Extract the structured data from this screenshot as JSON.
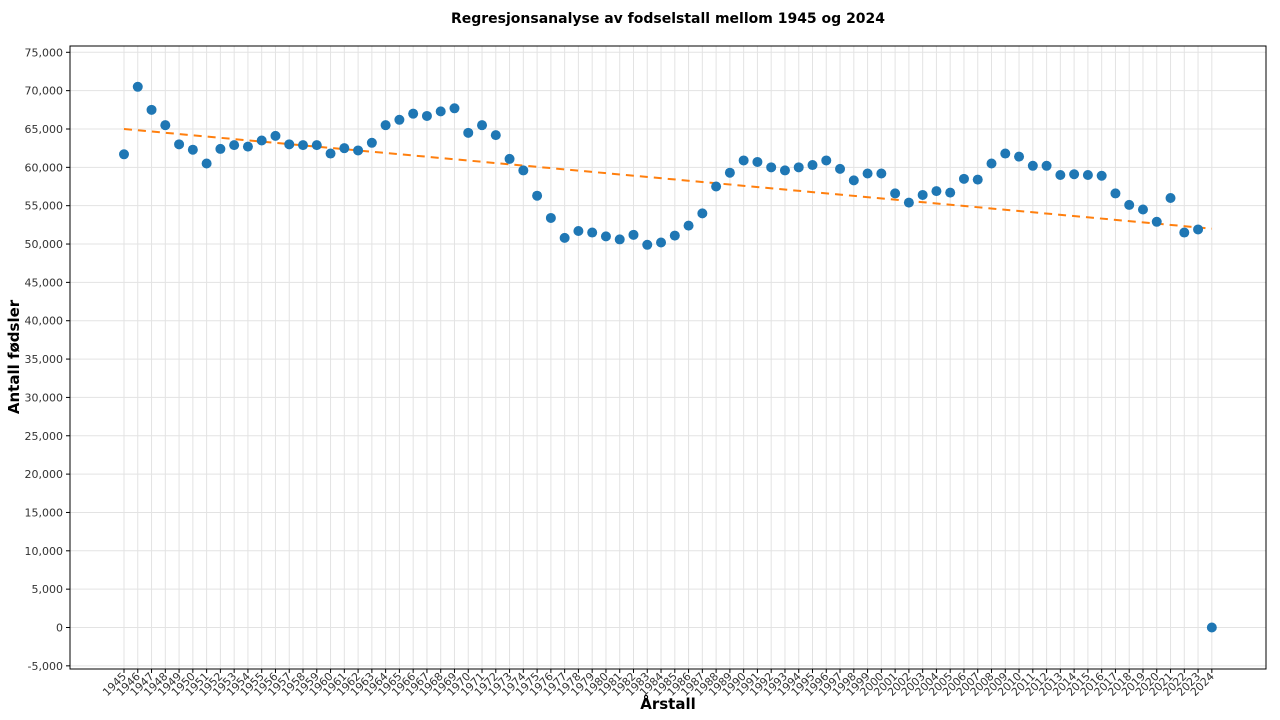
{
  "chart_data": {
    "type": "scatter",
    "title": "Regresjonsanalyse av fodselstall mellom 1945 og 2024",
    "xlabel": "Årstall",
    "ylabel": "Antall fødsler",
    "ylim": [
      -5000,
      75000
    ],
    "yticks": [
      "-5,000",
      "0",
      "5,000",
      "10,000",
      "15,000",
      "20,000",
      "25,000",
      "30,000",
      "35,000",
      "40,000",
      "45,000",
      "50,000",
      "55,000",
      "60,000",
      "65,000",
      "70,000",
      "75,000"
    ],
    "ytick_values": [
      -5000,
      0,
      5000,
      10000,
      15000,
      20000,
      25000,
      30000,
      35000,
      40000,
      45000,
      50000,
      55000,
      60000,
      65000,
      70000,
      75000
    ],
    "grid": true,
    "colors": {
      "points": "#1f77b4",
      "trend": "#ff7f0e"
    },
    "series": [
      {
        "kind": "points",
        "x": [
          1945,
          1946,
          1947,
          1948,
          1949,
          1950,
          1951,
          1952,
          1953,
          1954,
          1955,
          1956,
          1957,
          1958,
          1959,
          1960,
          1961,
          1962,
          1963,
          1964,
          1965,
          1966,
          1967,
          1968,
          1969,
          1970,
          1971,
          1972,
          1973,
          1974,
          1975,
          1976,
          1977,
          1978,
          1979,
          1980,
          1981,
          1982,
          1983,
          1984,
          1985,
          1986,
          1987,
          1988,
          1989,
          1990,
          1991,
          1992,
          1993,
          1994,
          1995,
          1996,
          1997,
          1998,
          1999,
          2000,
          2001,
          2002,
          2003,
          2004,
          2005,
          2006,
          2007,
          2008,
          2009,
          2010,
          2011,
          2012,
          2013,
          2014,
          2015,
          2016,
          2017,
          2018,
          2019,
          2020,
          2021,
          2022,
          2023,
          2024
        ],
        "y": [
          61700,
          70500,
          67500,
          65500,
          63000,
          62300,
          60500,
          62400,
          62900,
          62700,
          63500,
          64100,
          63000,
          62900,
          62900,
          61800,
          62500,
          62200,
          63200,
          65500,
          66200,
          67000,
          66700,
          67300,
          67700,
          64500,
          65500,
          64200,
          61100,
          59600,
          56300,
          53400,
          50800,
          51700,
          51500,
          51000,
          50600,
          51200,
          49900,
          50200,
          51100,
          52400,
          54000,
          57500,
          59300,
          60900,
          60700,
          60000,
          59600,
          60000,
          60300,
          60900,
          59800,
          58300,
          59200,
          59200,
          56600,
          55400,
          56400,
          56900,
          56700,
          58500,
          58400,
          60500,
          61800,
          61400,
          60200,
          60200,
          59000,
          59100,
          59000,
          58900,
          56600,
          55100,
          54500,
          52900,
          56000,
          51500,
          51900,
          0
        ]
      },
      {
        "kind": "trend",
        "style": "dashed",
        "x": [
          1945,
          2024
        ],
        "y": [
          65000,
          52000
        ]
      }
    ]
  }
}
